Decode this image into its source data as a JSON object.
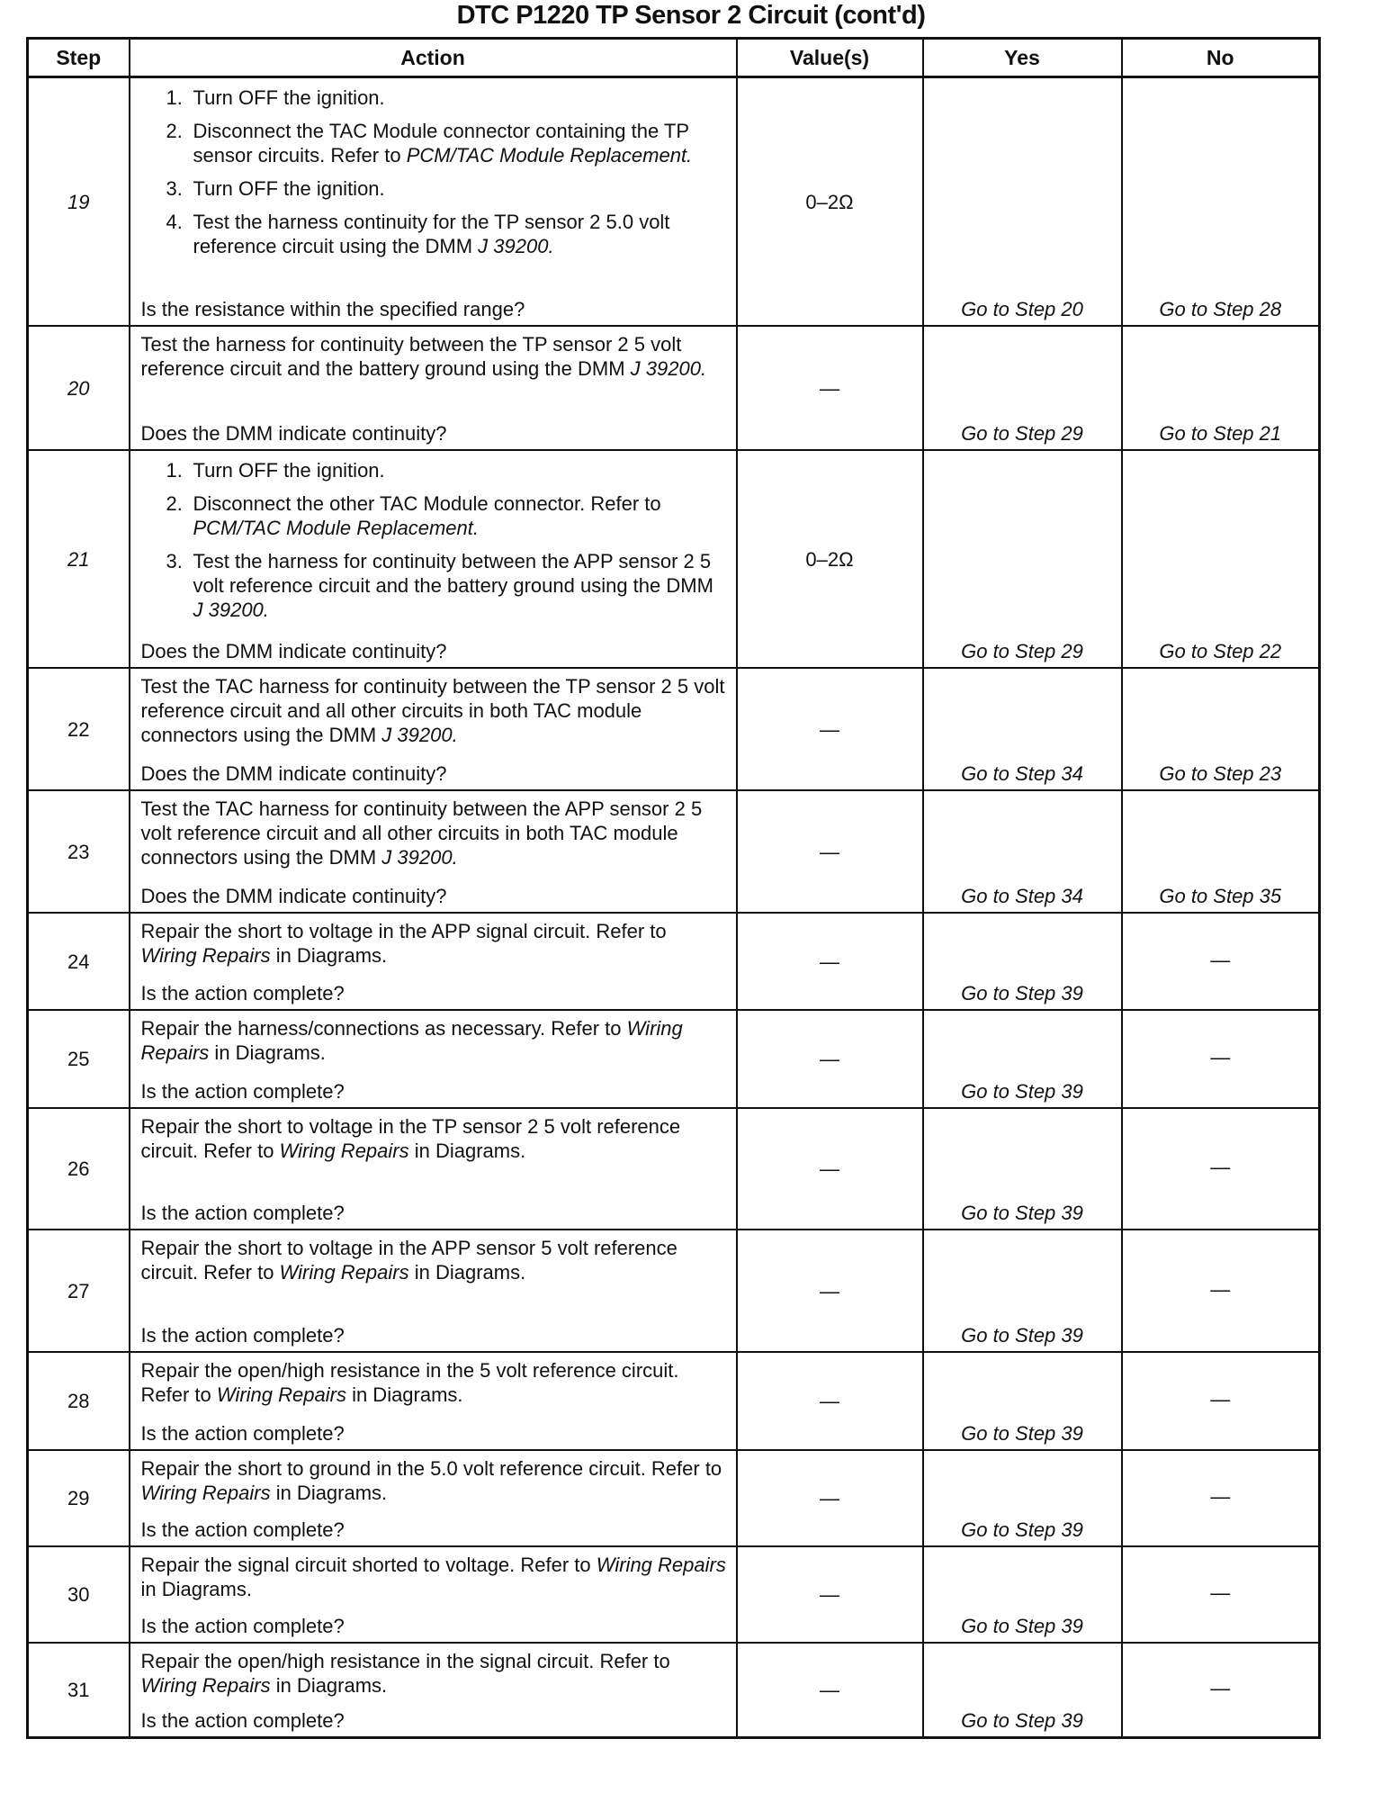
{
  "title": "DTC P1220 TP Sensor 2 Circuit  (cont'd)",
  "headers": {
    "step": "Step",
    "action": "Action",
    "values": "Value(s)",
    "yes": "Yes",
    "no": "No"
  },
  "rows": [
    {
      "step": "19",
      "italic": true,
      "h": 274,
      "blocks": [
        {
          "n": "1.",
          "segs": [
            {
              "t": "Turn OFF the ignition."
            }
          ]
        },
        {
          "n": "2.",
          "segs": [
            {
              "t": "Disconnect the TAC Module connector containing the TP sensor circuits. Refer to "
            },
            {
              "t": "PCM/TAC Module Replacement.",
              "i": true
            }
          ]
        },
        {
          "n": "3.",
          "segs": [
            {
              "t": "Turn OFF the ignition."
            }
          ]
        },
        {
          "n": "4.",
          "segs": [
            {
              "t": "Test the harness continuity for the TP sensor 2 5.0 volt reference circuit using the DMM "
            },
            {
              "t": "J 39200.",
              "i": true
            }
          ]
        }
      ],
      "question": "Is the resistance within the specified range?",
      "value": "0–2Ω",
      "yes": "Go to Step 20",
      "no": "Go to Step 28"
    },
    {
      "step": "20",
      "italic": true,
      "h": 136,
      "blocks": [
        {
          "segs": [
            {
              "t": "Test the harness for continuity between the TP sensor 2 5 volt reference circuit and the battery ground using the DMM "
            },
            {
              "t": "J 39200.",
              "i": true
            }
          ]
        }
      ],
      "question": "Does the DMM indicate continuity?",
      "value": "—",
      "yes": "Go to Step 29",
      "no": "Go to Step 21"
    },
    {
      "step": "21",
      "italic": true,
      "h": 240,
      "blocks": [
        {
          "n": "1.",
          "segs": [
            {
              "t": "Turn OFF the ignition."
            }
          ]
        },
        {
          "n": "2.",
          "segs": [
            {
              "t": "Disconnect the other TAC Module connector. Refer to "
            },
            {
              "t": "PCM/TAC Module Replacement.",
              "i": true
            }
          ]
        },
        {
          "n": "3.",
          "segs": [
            {
              "t": "Test the harness for continuity between the APP sensor 2 5 volt reference circuit and the battery ground using the DMM "
            },
            {
              "t": "J 39200.",
              "i": true
            }
          ]
        }
      ],
      "question": "Does the DMM indicate continuity?",
      "value": "0–2Ω",
      "yes": "Go to Step 29",
      "no": "Go to Step 22"
    },
    {
      "step": "22",
      "h": 134,
      "blocks": [
        {
          "segs": [
            {
              "t": "Test the TAC harness for continuity between the TP sensor 2 5 volt reference circuit and all other circuits in both TAC module connectors using the DMM "
            },
            {
              "t": "J 39200.",
              "i": true
            }
          ]
        }
      ],
      "question": "Does the DMM indicate continuity?",
      "value": "—",
      "yes": "Go to Step 34",
      "no": "Go to Step 23"
    },
    {
      "step": "23",
      "h": 134,
      "blocks": [
        {
          "segs": [
            {
              "t": "Test the TAC harness for continuity between the APP sensor 2 5 volt reference circuit and all other circuits in both TAC module connectors using the DMM "
            },
            {
              "t": "J 39200.",
              "i": true
            }
          ]
        }
      ],
      "question": "Does the DMM indicate continuity?",
      "value": "—",
      "yes": "Go to Step 34",
      "no": "Go to Step 35"
    },
    {
      "step": "24",
      "h": 106,
      "blocks": [
        {
          "segs": [
            {
              "t": "Repair the short to voltage in the APP signal circuit. Refer to "
            },
            {
              "t": "Wiring Repairs",
              "i": true
            },
            {
              "t": " in Diagrams."
            }
          ]
        }
      ],
      "question": "Is the action complete?",
      "value": "—",
      "yes": "Go to Step 39",
      "no": "—"
    },
    {
      "step": "25",
      "h": 107,
      "blocks": [
        {
          "segs": [
            {
              "t": "Repair the harness/connections as necessary. Refer to "
            },
            {
              "t": "Wiring Repairs",
              "i": true
            },
            {
              "t": " in Diagrams."
            }
          ]
        }
      ],
      "question": "Is the action complete?",
      "value": "—",
      "yes": "Go to Step 39",
      "no": "—"
    },
    {
      "step": "26",
      "h": 133,
      "blocks": [
        {
          "segs": [
            {
              "t": "Repair the short to voltage in the TP sensor 2 5 volt reference circuit. Refer to "
            },
            {
              "t": "Wiring Repairs",
              "i": true
            },
            {
              "t": " in Diagrams."
            }
          ]
        }
      ],
      "question": "Is the action complete?",
      "value": "—",
      "yes": "Go to Step 39",
      "no": "—"
    },
    {
      "step": "27",
      "h": 134,
      "blocks": [
        {
          "segs": [
            {
              "t": "Repair the short to voltage in the APP sensor 5 volt reference circuit. Refer to "
            },
            {
              "t": "Wiring Repairs",
              "i": true
            },
            {
              "t": " in Diagrams."
            }
          ]
        }
      ],
      "question": "Is the action complete?",
      "value": "—",
      "yes": "Go to Step 39",
      "no": "—"
    },
    {
      "step": "28",
      "h": 107,
      "blocks": [
        {
          "segs": [
            {
              "t": "Repair the open/high resistance in the 5 volt reference circuit. Refer to "
            },
            {
              "t": "Wiring Repairs",
              "i": true
            },
            {
              "t": " in Diagrams."
            }
          ]
        }
      ],
      "question": "Is the action complete?",
      "value": "—",
      "yes": "Go to Step 39",
      "no": "—"
    },
    {
      "step": "29",
      "h": 105,
      "blocks": [
        {
          "segs": [
            {
              "t": "Repair the short to ground in the 5.0 volt reference circuit. Refer to "
            },
            {
              "t": "Wiring Repairs",
              "i": true
            },
            {
              "t": " in Diagrams."
            }
          ]
        }
      ],
      "question": "Is the action complete?",
      "value": "—",
      "yes": "Go to Step 39",
      "no": "—"
    },
    {
      "step": "30",
      "h": 105,
      "blocks": [
        {
          "segs": [
            {
              "t": "Repair the signal circuit shorted to voltage. Refer to "
            },
            {
              "t": "Wiring Repairs",
              "i": true
            },
            {
              "t": " in Diagrams."
            }
          ]
        }
      ],
      "question": "Is the action complete?",
      "value": "—",
      "yes": "Go to Step 39",
      "no": "—"
    },
    {
      "step": "31",
      "h": 103,
      "blocks": [
        {
          "segs": [
            {
              "t": "Repair the open/high resistance in the signal circuit. Refer to "
            },
            {
              "t": "Wiring Repairs",
              "i": true
            },
            {
              "t": " in Diagrams."
            }
          ]
        }
      ],
      "question": "Is the action complete?",
      "value": "—",
      "yes": "Go to Step 39",
      "no": "—"
    }
  ]
}
